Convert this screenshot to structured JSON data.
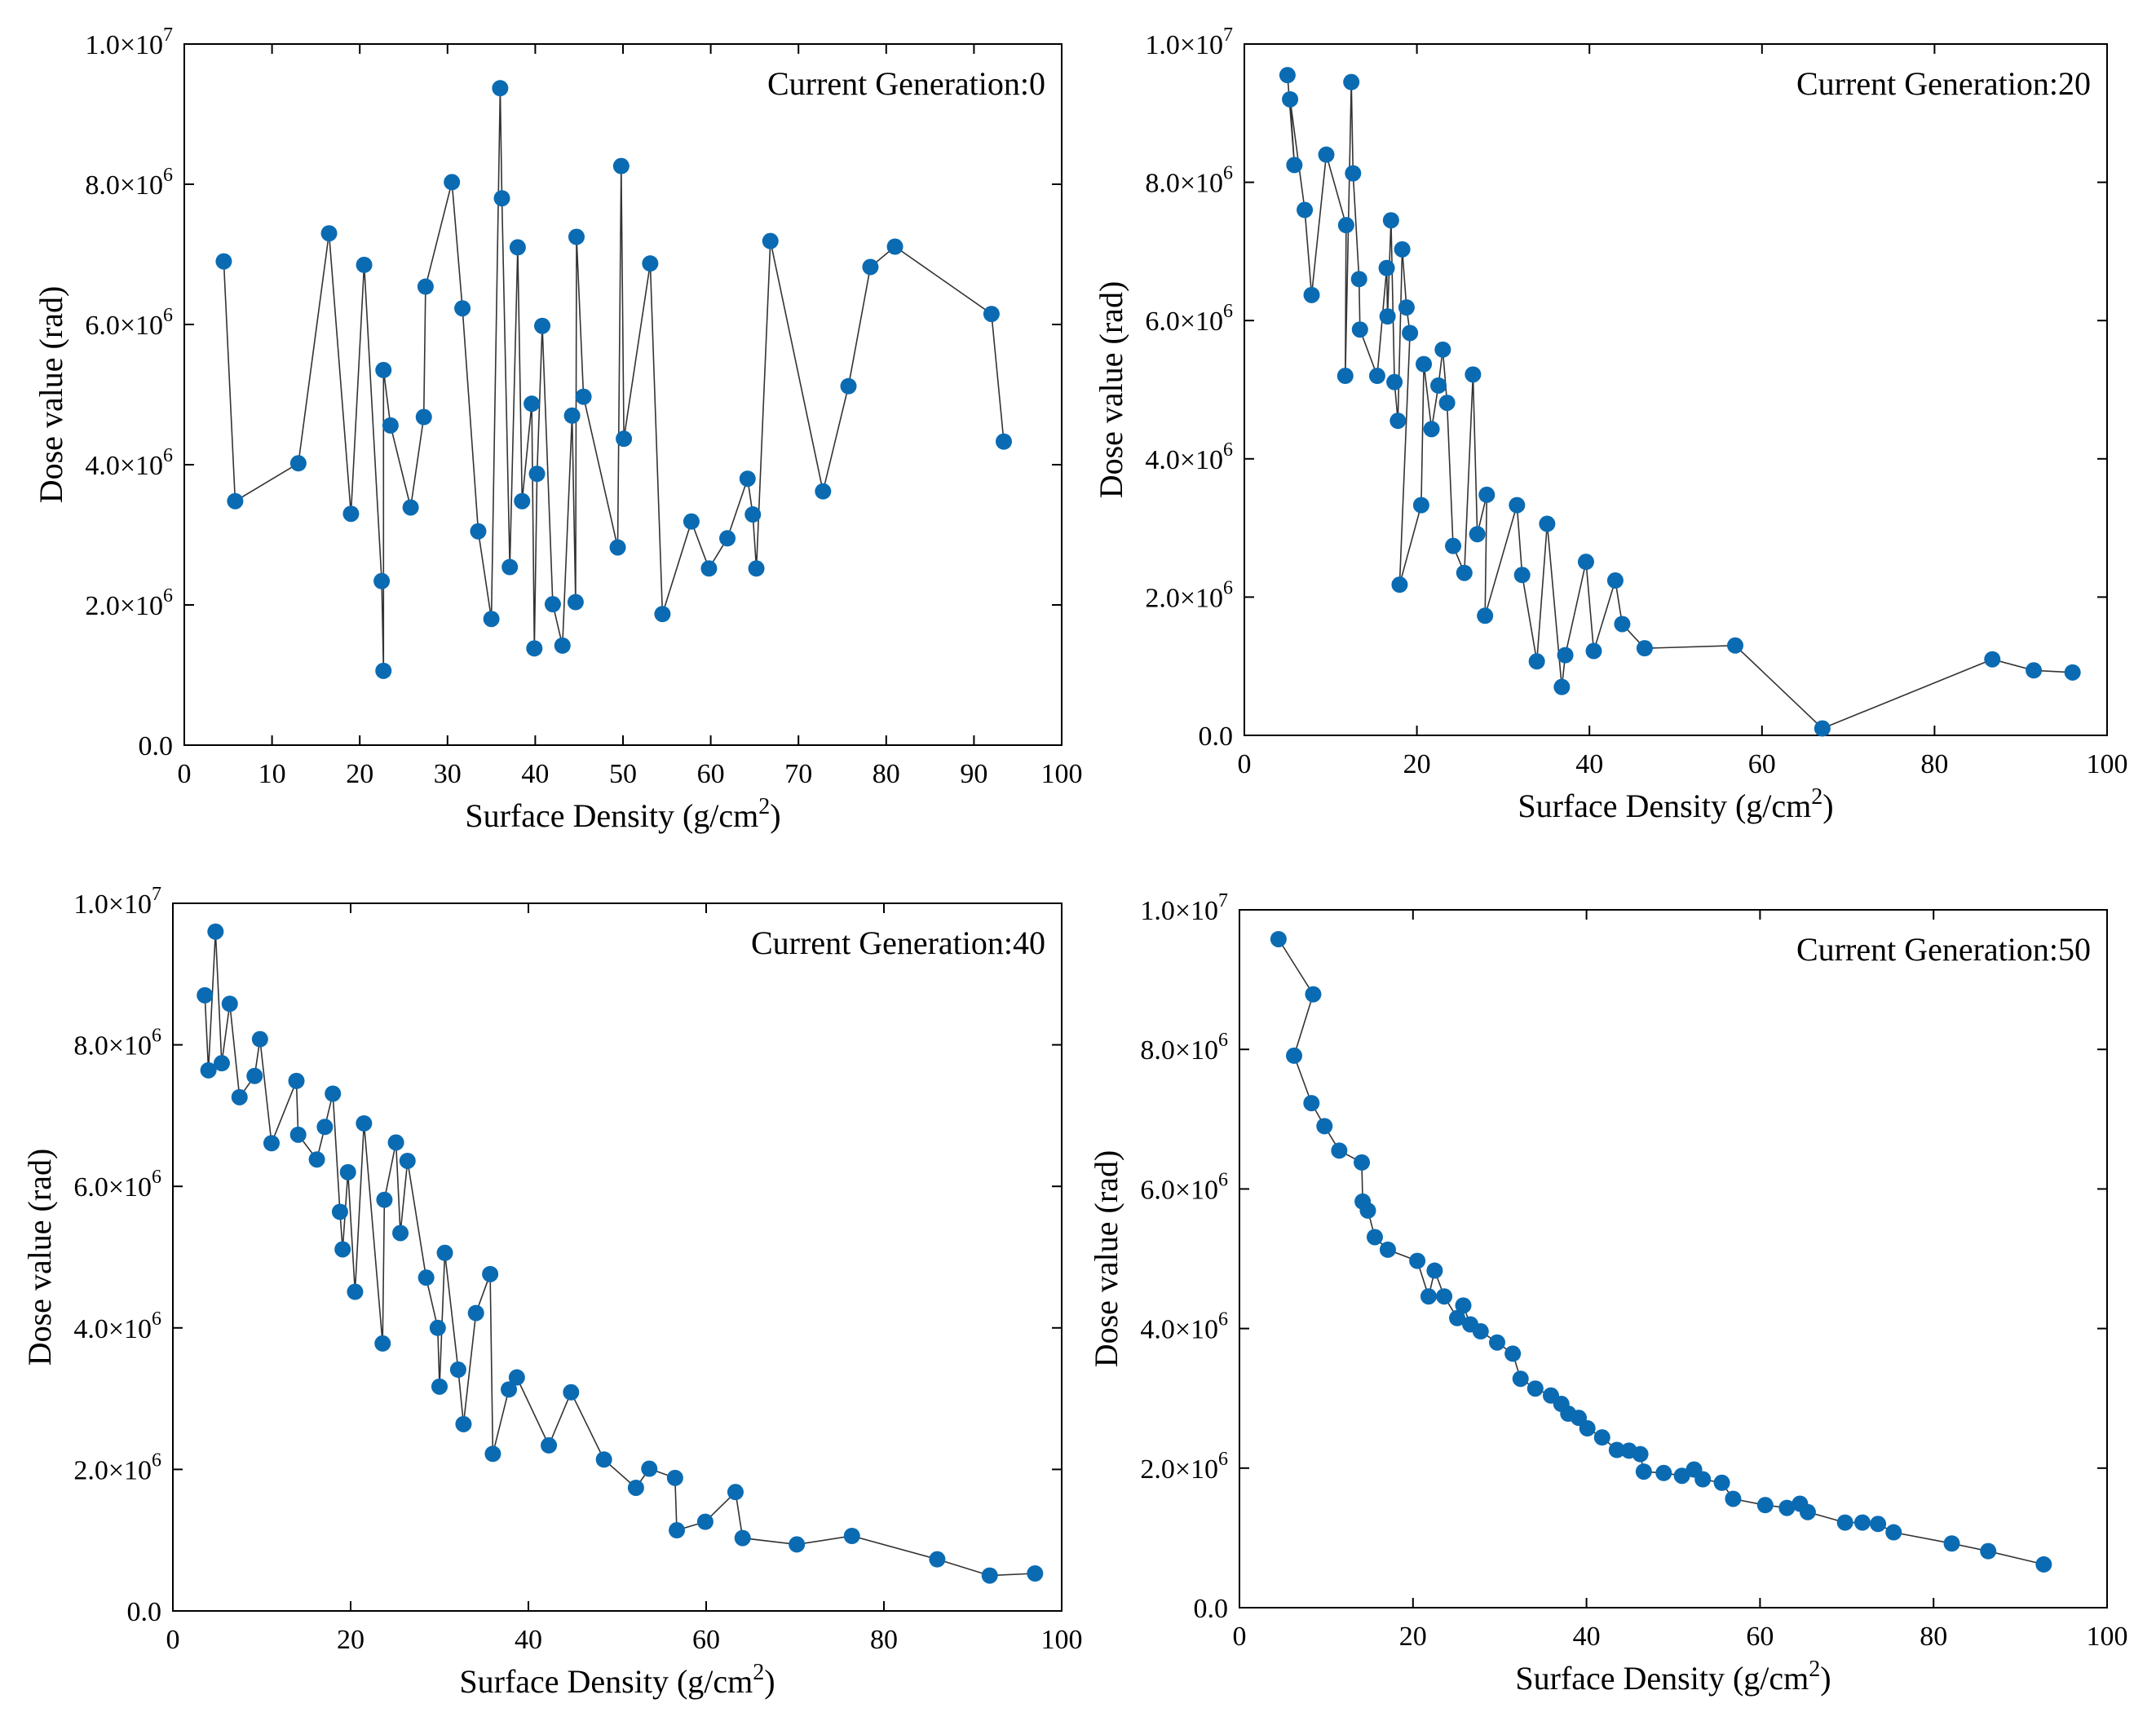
{
  "chart_data": [
    {
      "type": "scatter",
      "subtitle": "Current Generation:0",
      "xlabel": "Surface Density (g/cm",
      "xlabel_sup": "2",
      "xlabel_end": ")",
      "ylabel": "Dose value (rad)",
      "xlim": [
        0,
        100
      ],
      "ylim": [
        0,
        10000000
      ],
      "x_ticks": [
        0,
        10,
        20,
        30,
        40,
        50,
        60,
        70,
        80,
        90,
        100
      ],
      "x_tick_labels": [
        "0",
        "10",
        "20",
        "30",
        "40",
        "50",
        "60",
        "70",
        "80",
        "90",
        "100"
      ],
      "y_ticks": [
        0,
        2000000,
        4000000,
        6000000,
        8000000,
        10000000
      ],
      "y_tick_labels": [
        {
          "base": "0.0",
          "exp": ""
        },
        {
          "base": "2.0×10",
          "exp": "6"
        },
        {
          "base": "4.0×10",
          "exp": "6"
        },
        {
          "base": "6.0×10",
          "exp": "6"
        },
        {
          "base": "8.0×10",
          "exp": "6"
        },
        {
          "base": "1.0×10",
          "exp": "7"
        }
      ],
      "marker_color": "#0a6bb3",
      "line_color": "#333333",
      "x": [
        4.5,
        5.8,
        13,
        16.5,
        19,
        20.5,
        22.5,
        22.7,
        22.7,
        23.5,
        25.8,
        27.3,
        27.5,
        30.5,
        31.7,
        33.5,
        35,
        36,
        36.2,
        37.1,
        38,
        38.5,
        39.6,
        39.9,
        40.2,
        40.8,
        42,
        43.1,
        44.2,
        44.6,
        44.7,
        45.5,
        49.4,
        49.8,
        50.1,
        53.1,
        54.5,
        57.8,
        59.8,
        61.9,
        64.2,
        64.8,
        65.2,
        66.8,
        72.8,
        75.7,
        78.2,
        81,
        92,
        93.4
      ],
      "y": [
        6900000,
        3480000,
        4020000,
        7300000,
        3300000,
        6850000,
        2340000,
        1060000,
        5350000,
        4560000,
        3390000,
        4680000,
        6540000,
        8030000,
        6230000,
        3050000,
        1800000,
        9370000,
        7800000,
        2540000,
        7100000,
        3480000,
        4870000,
        1380000,
        3870000,
        5980000,
        2010000,
        1420000,
        4700000,
        2040000,
        7250000,
        4970000,
        2820000,
        8260000,
        4370000,
        6870000,
        1870000,
        3190000,
        2520000,
        2950000,
        3800000,
        3290000,
        2520000,
        7190000,
        3620000,
        5120000,
        6820000,
        7110000,
        6150000,
        4330000
      ]
    },
    {
      "type": "scatter",
      "subtitle": "Current Generation:20",
      "xlabel": "Surface Density (g/cm",
      "xlabel_sup": "2",
      "xlabel_end": ")",
      "ylabel": "Dose value (rad)",
      "xlim": [
        0,
        100
      ],
      "ylim": [
        0,
        10000000
      ],
      "x_ticks": [
        0,
        20,
        40,
        60,
        80,
        100
      ],
      "x_tick_labels": [
        "0",
        "20",
        "40",
        "60",
        "80",
        "100"
      ],
      "y_ticks": [
        0,
        2000000,
        4000000,
        6000000,
        8000000,
        10000000
      ],
      "y_tick_labels": [
        {
          "base": "0.0",
          "exp": ""
        },
        {
          "base": "2.0×10",
          "exp": "6"
        },
        {
          "base": "4.0×10",
          "exp": "6"
        },
        {
          "base": "6.0×10",
          "exp": "6"
        },
        {
          "base": "8.0×10",
          "exp": "6"
        },
        {
          "base": "1.0×10",
          "exp": "7"
        }
      ],
      "marker_color": "#0a6bb3",
      "line_color": "#333333",
      "x": [
        5,
        5.8,
        5.3,
        7,
        7.8,
        9.5,
        11.8,
        11.7,
        12.4,
        12.6,
        13.3,
        13.4,
        15.4,
        16.5,
        16.6,
        17,
        17.4,
        17.8,
        18.3,
        18.8,
        19.2,
        18,
        20.5,
        20.8,
        21.7,
        22.5,
        23,
        23.5,
        24.2,
        25.5,
        26.5,
        27,
        28.1,
        27.9,
        31.6,
        32.2,
        33.9,
        35.1,
        36.8,
        37.2,
        39.6,
        40.5,
        43,
        43.8,
        46.4,
        56.9,
        67,
        86.7,
        91.5,
        96
      ],
      "y": [
        9550000,
        8250000,
        9200000,
        7600000,
        6370000,
        8400000,
        7380000,
        5200000,
        9450000,
        8130000,
        6600000,
        5870000,
        5200000,
        6760000,
        6060000,
        7450000,
        5110000,
        4550000,
        7030000,
        6190000,
        5820000,
        2180000,
        3330000,
        5370000,
        4430000,
        5060000,
        5580000,
        4810000,
        2740000,
        2350000,
        5220000,
        2910000,
        3480000,
        1730000,
        3330000,
        2320000,
        1070000,
        3060000,
        700000,
        1160000,
        2510000,
        1220000,
        2240000,
        1610000,
        1260000,
        1300000,
        100000,
        1100000,
        940000,
        910000
      ]
    },
    {
      "type": "scatter",
      "subtitle": "Current Generation:40",
      "xlabel": "Surface Density (g/cm",
      "xlabel_sup": "2",
      "xlabel_end": ")",
      "ylabel": "Dose value (rad)",
      "xlim": [
        0,
        100
      ],
      "ylim": [
        0,
        10000000
      ],
      "x_ticks": [
        0,
        20,
        40,
        60,
        80,
        100
      ],
      "x_tick_labels": [
        "0",
        "20",
        "40",
        "60",
        "80",
        "100"
      ],
      "y_ticks": [
        0,
        2000000,
        4000000,
        6000000,
        8000000,
        10000000
      ],
      "y_tick_labels": [
        {
          "base": "0.0",
          "exp": ""
        },
        {
          "base": "2.0×10",
          "exp": "6"
        },
        {
          "base": "4.0×10",
          "exp": "6"
        },
        {
          "base": "6.0×10",
          "exp": "6"
        },
        {
          "base": "8.0×10",
          "exp": "6"
        },
        {
          "base": "1.0×10",
          "exp": "7"
        }
      ],
      "marker_color": "#0a6bb3",
      "line_color": "#333333",
      "x": [
        3.6,
        4,
        4.8,
        5.5,
        6.4,
        7.5,
        9.2,
        9.8,
        11.1,
        13.9,
        14.1,
        16.2,
        17.1,
        18,
        18.8,
        19.1,
        19.7,
        20.5,
        21.5,
        23.6,
        23.8,
        25.1,
        25.6,
        26.4,
        28.5,
        29.8,
        30,
        30.6,
        32.1,
        32.7,
        34.1,
        35.7,
        36,
        37.8,
        38.7,
        42.3,
        44.8,
        48.5,
        52.1,
        53.6,
        56.5,
        56.7,
        59.9,
        63.3,
        64.1,
        70.2,
        76.4,
        86,
        91.9,
        97
      ],
      "y": [
        8700000,
        7640000,
        9600000,
        7740000,
        8580000,
        7260000,
        7560000,
        8080000,
        6610000,
        7490000,
        6730000,
        6380000,
        6840000,
        7310000,
        5640000,
        5110000,
        6200000,
        4510000,
        6890000,
        3780000,
        5810000,
        6620000,
        5340000,
        6360000,
        4710000,
        4000000,
        3170000,
        5060000,
        3410000,
        2640000,
        4210000,
        4760000,
        2220000,
        3130000,
        3300000,
        2340000,
        3090000,
        2140000,
        1740000,
        2010000,
        1880000,
        1140000,
        1260000,
        1680000,
        1030000,
        940000,
        1060000,
        730000,
        500000,
        530000
      ]
    },
    {
      "type": "scatter",
      "subtitle": "Current Generation:50",
      "xlabel": "Surface Density (g/cm",
      "xlabel_sup": "2",
      "xlabel_end": ")",
      "ylabel": "Dose value (rad)",
      "xlim": [
        0,
        100
      ],
      "ylim": [
        0,
        10000000
      ],
      "x_ticks": [
        0,
        20,
        40,
        60,
        80,
        100
      ],
      "x_tick_labels": [
        "0",
        "20",
        "40",
        "60",
        "80",
        "100"
      ],
      "y_ticks": [
        0,
        2000000,
        4000000,
        6000000,
        8000000,
        10000000
      ],
      "y_tick_labels": [
        {
          "base": "0.0",
          "exp": ""
        },
        {
          "base": "2.0×10",
          "exp": "6"
        },
        {
          "base": "4.0×10",
          "exp": "6"
        },
        {
          "base": "6.0×10",
          "exp": "6"
        },
        {
          "base": "8.0×10",
          "exp": "6"
        },
        {
          "base": "1.0×10",
          "exp": "7"
        }
      ],
      "marker_color": "#0a6bb3",
      "line_color": "#333333",
      "x": [
        4.5,
        8.5,
        6.3,
        8.3,
        9.8,
        11.5,
        14.1,
        14.2,
        14.8,
        15.6,
        17.1,
        20.5,
        21.8,
        22.5,
        23.6,
        25.1,
        25.8,
        26.6,
        27.8,
        29.7,
        31.5,
        32.4,
        34.1,
        35.9,
        37.1,
        37.9,
        39.1,
        40.1,
        41.8,
        43.5,
        44.9,
        46.2,
        46.6,
        48.9,
        51,
        52.4,
        53.4,
        55.6,
        56.9,
        60.6,
        63.1,
        64.6,
        65.5,
        69.8,
        71.8,
        73.6,
        75.4,
        82.1,
        86.3,
        92.7
      ],
      "y": [
        9580000,
        8790000,
        7910000,
        7230000,
        6900000,
        6550000,
        6380000,
        5820000,
        5690000,
        5310000,
        5130000,
        4970000,
        4460000,
        4830000,
        4460000,
        4150000,
        4330000,
        4060000,
        3960000,
        3800000,
        3640000,
        3280000,
        3140000,
        3040000,
        2920000,
        2780000,
        2720000,
        2570000,
        2440000,
        2260000,
        2250000,
        2200000,
        1950000,
        1930000,
        1890000,
        1980000,
        1840000,
        1790000,
        1560000,
        1470000,
        1430000,
        1490000,
        1370000,
        1220000,
        1220000,
        1200000,
        1080000,
        920000,
        810000,
        620000
      ]
    }
  ]
}
